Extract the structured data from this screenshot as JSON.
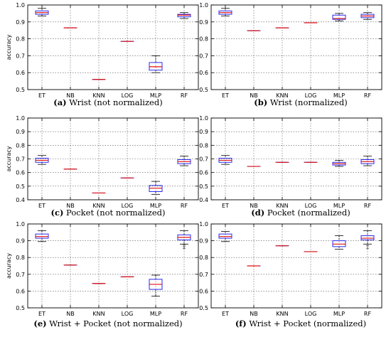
{
  "figure": {
    "panels": [
      {
        "label": "(a)",
        "caption": "Wrist (not normalized)"
      },
      {
        "label": "(b)",
        "caption": "Wrist (normalized)"
      },
      {
        "label": "(c)",
        "caption": "Pocket (not normalized)"
      },
      {
        "label": "(d)",
        "caption": "Pocket (normalized)"
      },
      {
        "label": "(e)",
        "caption": "Wrist + Pocket (not normalized)"
      },
      {
        "label": "(f)",
        "caption": "Wrist + Pocket (normalized)"
      }
    ]
  },
  "colors": {
    "box": "#2a2af0",
    "median": "#e01010",
    "whisker": "#000000",
    "grid": "#555555",
    "flier": "#555555"
  },
  "chart_data": [
    {
      "type": "box",
      "panel": "(a)",
      "title": "Wrist (not normalized)",
      "ylabel": "accuracy",
      "ylim": [
        0.5,
        1.0
      ],
      "yticks": [
        0.5,
        0.6,
        0.7,
        0.8,
        0.9,
        1.0
      ],
      "categories": [
        "ET",
        "NB",
        "KNN",
        "LOG",
        "MLP",
        "RF"
      ],
      "grid": true,
      "boxes": [
        {
          "min": 0.935,
          "q1": 0.945,
          "median": 0.955,
          "q3": 0.965,
          "max": 0.98
        },
        {
          "min": 0.865,
          "q1": 0.865,
          "median": 0.865,
          "q3": 0.865,
          "max": 0.865
        },
        {
          "min": 0.56,
          "q1": 0.56,
          "median": 0.56,
          "q3": 0.56,
          "max": 0.56
        },
        {
          "min": 0.785,
          "q1": 0.785,
          "median": 0.785,
          "q3": 0.785,
          "max": 0.785
        },
        {
          "min": 0.6,
          "q1": 0.615,
          "median": 0.635,
          "q3": 0.66,
          "max": 0.7
        },
        {
          "min": 0.92,
          "q1": 0.93,
          "median": 0.94,
          "q3": 0.945,
          "max": 0.955
        }
      ]
    },
    {
      "type": "box",
      "panel": "(b)",
      "title": "Wrist (normalized)",
      "ylabel": "",
      "ylim": [
        0.5,
        1.0
      ],
      "yticks": [
        0.5,
        0.6,
        0.7,
        0.8,
        0.9,
        1.0
      ],
      "categories": [
        "ET",
        "NB",
        "KNN",
        "LOG",
        "MLP",
        "RF"
      ],
      "grid": true,
      "boxes": [
        {
          "min": 0.935,
          "q1": 0.945,
          "median": 0.955,
          "q3": 0.965,
          "max": 0.98
        },
        {
          "min": 0.848,
          "q1": 0.848,
          "median": 0.848,
          "q3": 0.848,
          "max": 0.848
        },
        {
          "min": 0.865,
          "q1": 0.865,
          "median": 0.865,
          "q3": 0.865,
          "max": 0.865
        },
        {
          "min": 0.895,
          "q1": 0.895,
          "median": 0.895,
          "q3": 0.895,
          "max": 0.895
        },
        {
          "min": 0.905,
          "q1": 0.915,
          "median": 0.92,
          "q3": 0.94,
          "max": 0.95
        },
        {
          "min": 0.915,
          "q1": 0.925,
          "median": 0.935,
          "q3": 0.945,
          "max": 0.955
        }
      ]
    },
    {
      "type": "box",
      "panel": "(c)",
      "title": "Pocket (not normalized)",
      "ylabel": "accuracy",
      "ylim": [
        0.4,
        1.0
      ],
      "yticks": [
        0.4,
        0.5,
        0.6,
        0.7,
        0.8,
        0.9,
        1.0
      ],
      "categories": [
        "ET",
        "NB",
        "KNN",
        "LOG",
        "MLP",
        "RF"
      ],
      "grid": true,
      "boxes": [
        {
          "min": 0.66,
          "q1": 0.675,
          "median": 0.69,
          "q3": 0.705,
          "max": 0.725
        },
        {
          "min": 0.625,
          "q1": 0.625,
          "median": 0.625,
          "q3": 0.625,
          "max": 0.625
        },
        {
          "min": 0.45,
          "q1": 0.45,
          "median": 0.45,
          "q3": 0.45,
          "max": 0.45
        },
        {
          "min": 0.56,
          "q1": 0.56,
          "median": 0.56,
          "q3": 0.56,
          "max": 0.56
        },
        {
          "min": 0.44,
          "q1": 0.46,
          "median": 0.485,
          "q3": 0.505,
          "max": 0.535
        },
        {
          "min": 0.65,
          "q1": 0.665,
          "median": 0.68,
          "q3": 0.695,
          "max": 0.72
        }
      ]
    },
    {
      "type": "box",
      "panel": "(d)",
      "title": "Pocket (normalized)",
      "ylabel": "",
      "ylim": [
        0.4,
        1.0
      ],
      "yticks": [
        0.4,
        0.5,
        0.6,
        0.7,
        0.8,
        0.9,
        1.0
      ],
      "categories": [
        "ET",
        "NB",
        "KNN",
        "LOG",
        "MLP",
        "RF"
      ],
      "grid": true,
      "boxes": [
        {
          "min": 0.66,
          "q1": 0.675,
          "median": 0.69,
          "q3": 0.705,
          "max": 0.725
        },
        {
          "min": 0.645,
          "q1": 0.645,
          "median": 0.645,
          "q3": 0.645,
          "max": 0.645
        },
        {
          "min": 0.675,
          "q1": 0.675,
          "median": 0.675,
          "q3": 0.675,
          "max": 0.675
        },
        {
          "min": 0.675,
          "q1": 0.675,
          "median": 0.675,
          "q3": 0.675,
          "max": 0.675
        },
        {
          "min": 0.645,
          "q1": 0.655,
          "median": 0.665,
          "q3": 0.675,
          "max": 0.69
        },
        {
          "min": 0.65,
          "q1": 0.665,
          "median": 0.68,
          "q3": 0.695,
          "max": 0.72
        }
      ]
    },
    {
      "type": "box",
      "panel": "(e)",
      "title": "Wrist + Pocket (not normalized)",
      "ylabel": "accuracy",
      "ylim": [
        0.5,
        1.0
      ],
      "yticks": [
        0.5,
        0.6,
        0.7,
        0.8,
        0.9,
        1.0
      ],
      "categories": [
        "ET",
        "NB",
        "KNN",
        "LOG",
        "MLP",
        "RF"
      ],
      "grid": true,
      "boxes": [
        {
          "min": 0.895,
          "q1": 0.915,
          "median": 0.925,
          "q3": 0.94,
          "max": 0.96
        },
        {
          "min": 0.755,
          "q1": 0.755,
          "median": 0.755,
          "q3": 0.755,
          "max": 0.755
        },
        {
          "min": 0.645,
          "q1": 0.645,
          "median": 0.645,
          "q3": 0.645,
          "max": 0.645
        },
        {
          "min": 0.685,
          "q1": 0.685,
          "median": 0.685,
          "q3": 0.685,
          "max": 0.685
        },
        {
          "min": 0.57,
          "q1": 0.61,
          "median": 0.64,
          "q3": 0.67,
          "max": 0.695
        },
        {
          "min": 0.88,
          "q1": 0.905,
          "median": 0.92,
          "q3": 0.935,
          "max": 0.96,
          "fliers": [
            0.855,
            0.865,
            0.875
          ]
        }
      ]
    },
    {
      "type": "box",
      "panel": "(f)",
      "title": "Wrist + Pocket (normalized)",
      "ylabel": "",
      "ylim": [
        0.5,
        1.0
      ],
      "yticks": [
        0.5,
        0.6,
        0.7,
        0.8,
        0.9,
        1.0
      ],
      "categories": [
        "ET",
        "NB",
        "KNN",
        "LOG",
        "MLP",
        "RF"
      ],
      "grid": true,
      "boxes": [
        {
          "min": 0.895,
          "q1": 0.915,
          "median": 0.925,
          "q3": 0.94,
          "max": 0.955
        },
        {
          "min": 0.75,
          "q1": 0.75,
          "median": 0.75,
          "q3": 0.75,
          "max": 0.75
        },
        {
          "min": 0.87,
          "q1": 0.87,
          "median": 0.87,
          "q3": 0.87,
          "max": 0.87
        },
        {
          "min": 0.835,
          "q1": 0.835,
          "median": 0.835,
          "q3": 0.835,
          "max": 0.835
        },
        {
          "min": 0.85,
          "q1": 0.865,
          "median": 0.88,
          "q3": 0.9,
          "max": 0.93
        },
        {
          "min": 0.88,
          "q1": 0.905,
          "median": 0.915,
          "q3": 0.93,
          "max": 0.96,
          "fliers": [
            0.855,
            0.87
          ]
        }
      ]
    }
  ]
}
